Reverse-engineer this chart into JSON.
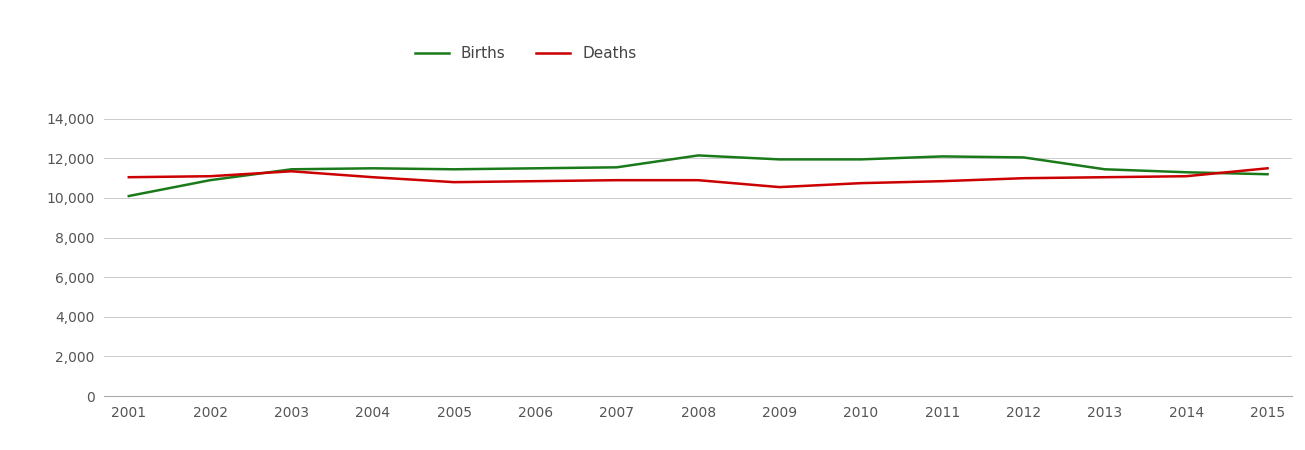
{
  "years": [
    2001,
    2002,
    2003,
    2004,
    2005,
    2006,
    2007,
    2008,
    2009,
    2010,
    2011,
    2012,
    2013,
    2014,
    2015
  ],
  "births": [
    10100,
    10900,
    11450,
    11500,
    11450,
    11500,
    11550,
    12150,
    11950,
    11950,
    12100,
    12050,
    11450,
    11300,
    11200
  ],
  "deaths": [
    11050,
    11100,
    11350,
    11050,
    10800,
    10850,
    10900,
    10900,
    10550,
    10750,
    10850,
    11000,
    11050,
    11100,
    11500
  ],
  "births_color": "#1a7a1a",
  "deaths_color": "#cc0000",
  "background_color": "#ffffff",
  "grid_color": "#cccccc",
  "ylim": [
    0,
    15000
  ],
  "yticks": [
    0,
    2000,
    4000,
    6000,
    8000,
    10000,
    12000,
    14000
  ],
  "legend_labels": [
    "Births",
    "Deaths"
  ],
  "line_width": 1.8
}
